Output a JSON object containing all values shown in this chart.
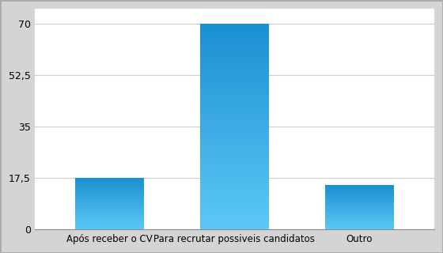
{
  "categories": [
    "Após receber o CV",
    "Para recrutar possiveis candidatos",
    "Outro"
  ],
  "values": [
    17.5,
    70,
    15
  ],
  "bar_color_bottom": "#5bc8f5",
  "bar_color_top": "#1a8fd1",
  "background_color": "#ffffff",
  "plot_bg_color": "#ffffff",
  "outer_bg_color": "#d4d4d4",
  "grid_color": "#cccccc",
  "yticks": [
    0,
    17.5,
    35,
    52.5,
    70
  ],
  "ytick_labels": [
    "0",
    "17,5",
    "35",
    "52,5",
    "70"
  ],
  "ylim": [
    0,
    75
  ],
  "tick_fontsize": 9,
  "label_fontsize": 8.5,
  "bar_width": 0.55
}
